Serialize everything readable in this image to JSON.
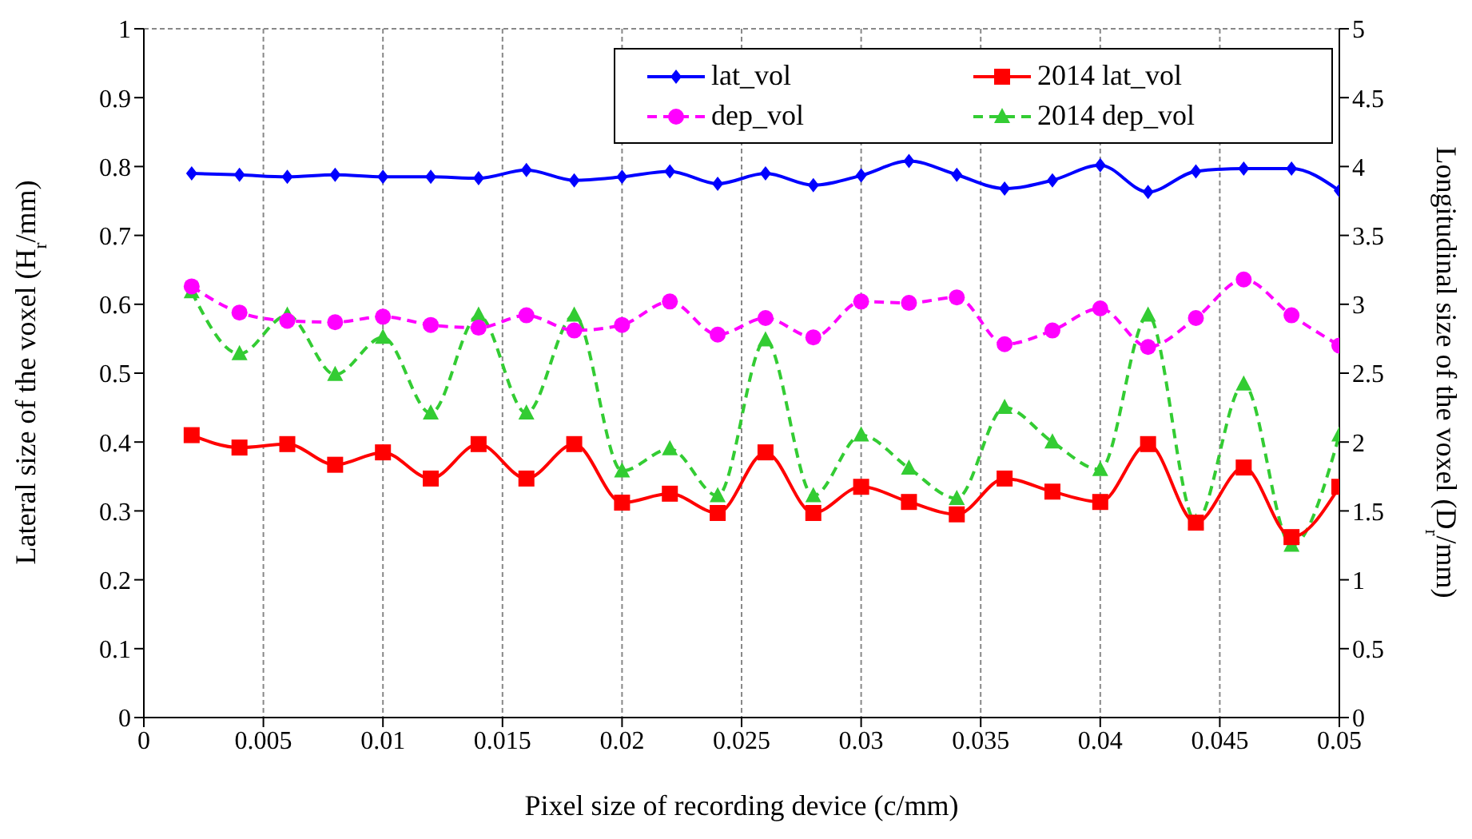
{
  "chart_data": {
    "type": "line",
    "xlabel": "Pixel size of recording device (c/mm)",
    "ylabel": "Lateral size of the voxel (H$_{r}$/mm)",
    "y2label": "Longitudinal size of the voxel (D$_{r}$/mm)",
    "x": [
      0.002,
      0.004,
      0.006,
      0.008,
      0.01,
      0.012,
      0.014,
      0.016,
      0.018,
      0.02,
      0.022,
      0.024,
      0.026,
      0.028,
      0.03,
      0.032,
      0.034,
      0.036,
      0.038,
      0.04,
      0.042,
      0.044,
      0.046,
      0.048,
      0.05
    ],
    "series": [
      {
        "name": "lat_vol",
        "color": "#0000ff",
        "marker": "diamond",
        "line_style": "solid",
        "values": [
          0.79,
          0.788,
          0.785,
          0.788,
          0.785,
          0.785,
          0.783,
          0.795,
          0.78,
          0.785,
          0.793,
          0.775,
          0.79,
          0.773,
          0.787,
          0.808,
          0.788,
          0.768,
          0.78,
          0.802,
          0.763,
          0.793,
          0.797,
          0.797,
          0.765
        ]
      },
      {
        "name": "2014 lat_vol",
        "color": "#ff0000",
        "marker": "square",
        "line_style": "solid",
        "values": [
          0.41,
          0.392,
          0.397,
          0.367,
          0.385,
          0.347,
          0.397,
          0.347,
          0.397,
          0.312,
          0.325,
          0.297,
          0.385,
          0.297,
          0.335,
          0.313,
          0.295,
          0.347,
          0.328,
          0.313,
          0.397,
          0.283,
          0.363,
          0.262,
          0.335
        ]
      },
      {
        "name": "dep_vol",
        "color": "#ff00ff",
        "marker": "circle",
        "line_style": "dashed",
        "axis": "y2",
        "values": [
          3.13,
          2.94,
          2.88,
          2.87,
          2.91,
          2.85,
          2.83,
          2.92,
          2.81,
          2.85,
          3.02,
          2.78,
          2.9,
          2.76,
          3.02,
          3.01,
          3.05,
          2.71,
          2.81,
          2.97,
          2.69,
          2.9,
          3.18,
          2.92,
          2.7
        ]
      },
      {
        "name": "2014 dep_vol",
        "color": "#33cc33",
        "marker": "triangle",
        "line_style": "dashed",
        "axis": "y2",
        "values": [
          3.09,
          2.64,
          2.92,
          2.49,
          2.76,
          2.21,
          2.92,
          2.21,
          2.92,
          1.79,
          1.95,
          1.61,
          2.74,
          1.61,
          2.05,
          1.81,
          1.59,
          2.25,
          2.0,
          1.8,
          2.92,
          1.42,
          2.42,
          1.25,
          2.05
        ]
      }
    ],
    "xlim": [
      0,
      0.05
    ],
    "xticks": [
      0,
      0.005,
      0.01,
      0.015,
      0.02,
      0.025,
      0.03,
      0.035,
      0.04,
      0.045,
      0.05
    ],
    "ylim": [
      0,
      1
    ],
    "yticks": [
      0,
      0.1,
      0.2,
      0.3,
      0.4,
      0.5,
      0.6,
      0.7,
      0.8,
      0.9,
      1
    ],
    "y2lim": [
      0,
      5
    ],
    "y2ticks": [
      0,
      0.5,
      1,
      1.5,
      2,
      2.5,
      3,
      3.5,
      4,
      4.5,
      5
    ],
    "grid": true,
    "legend": "top right"
  }
}
